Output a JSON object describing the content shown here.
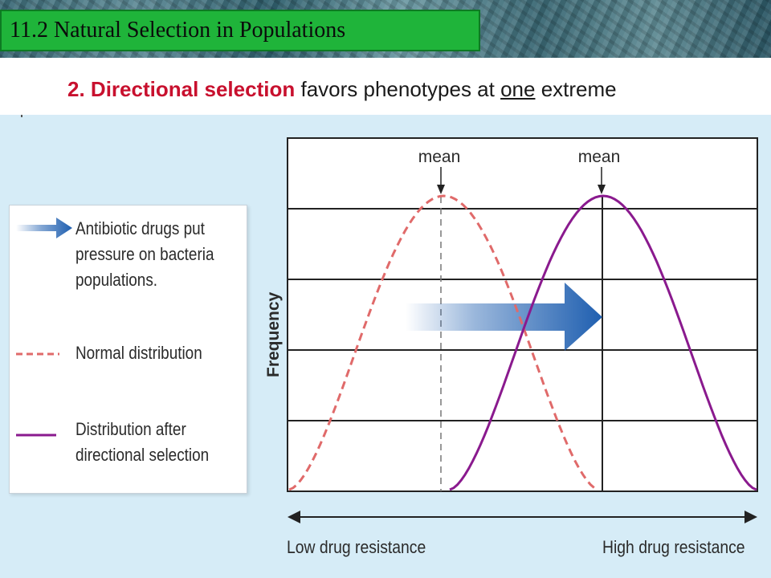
{
  "slide": {
    "title": "11.2 Natural Selection in Populations",
    "subtitle_number": "2.",
    "subtitle_highlight": "Directional selection",
    "subtitle_mid": "favors phenotypes at",
    "subtitle_underlined": "one",
    "subtitle_end": "extreme"
  },
  "legend": {
    "arrow_text": "Antibiotic drugs put\npressure on bacteria\npopulations.",
    "dashed_text": "Normal distribution",
    "solid_text": "Distribution after\ndirectional selection"
  },
  "diagram": {
    "y_axis_label": "Frequency",
    "x_axis_low": "Low drug resistance",
    "x_axis_high": "High drug resistance",
    "mean_label_normal": "mean",
    "mean_label_after": "mean",
    "colors": {
      "normal_curve": "#e06a6a",
      "after_curve": "#8a1a8e",
      "arrow": "#1f5fb0",
      "grid": "#222222"
    }
  }
}
